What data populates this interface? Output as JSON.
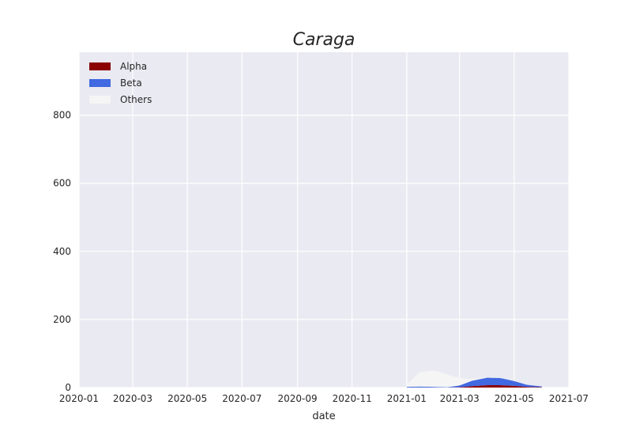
{
  "chart_data": {
    "type": "area",
    "stacked": true,
    "title": "Caraga",
    "xlabel": "date",
    "ylabel": "",
    "xlim": [
      "2020-01-01",
      "2021-07-01"
    ],
    "ylim": [
      0,
      985
    ],
    "x_ticks": [
      "2020-01",
      "2020-03",
      "2020-05",
      "2020-07",
      "2020-09",
      "2020-11",
      "2021-01",
      "2021-03",
      "2021-05",
      "2021-07"
    ],
    "y_ticks": [
      0,
      200,
      400,
      600,
      800
    ],
    "grid": true,
    "legend": {
      "placement": "top-left"
    },
    "x": [
      "2021-01-01",
      "2021-01-15",
      "2021-02-01",
      "2021-02-15",
      "2021-03-01",
      "2021-03-15",
      "2021-04-01",
      "2021-04-15",
      "2021-05-01",
      "2021-05-15",
      "2021-06-01"
    ],
    "series": [
      {
        "name": "Alpha",
        "color": "#8b0000",
        "values": [
          0,
          0,
          0,
          0,
          1,
          4,
          7,
          7,
          5,
          2,
          1
        ]
      },
      {
        "name": "Beta",
        "color": "#4169e1",
        "values": [
          2,
          3,
          2,
          1,
          5,
          16,
          22,
          21,
          14,
          6,
          2
        ]
      },
      {
        "name": "Others",
        "color": "#f5f5f5",
        "values": [
          6,
          42,
          48,
          38,
          22,
          5,
          1,
          0,
          0,
          0,
          0
        ]
      }
    ]
  }
}
